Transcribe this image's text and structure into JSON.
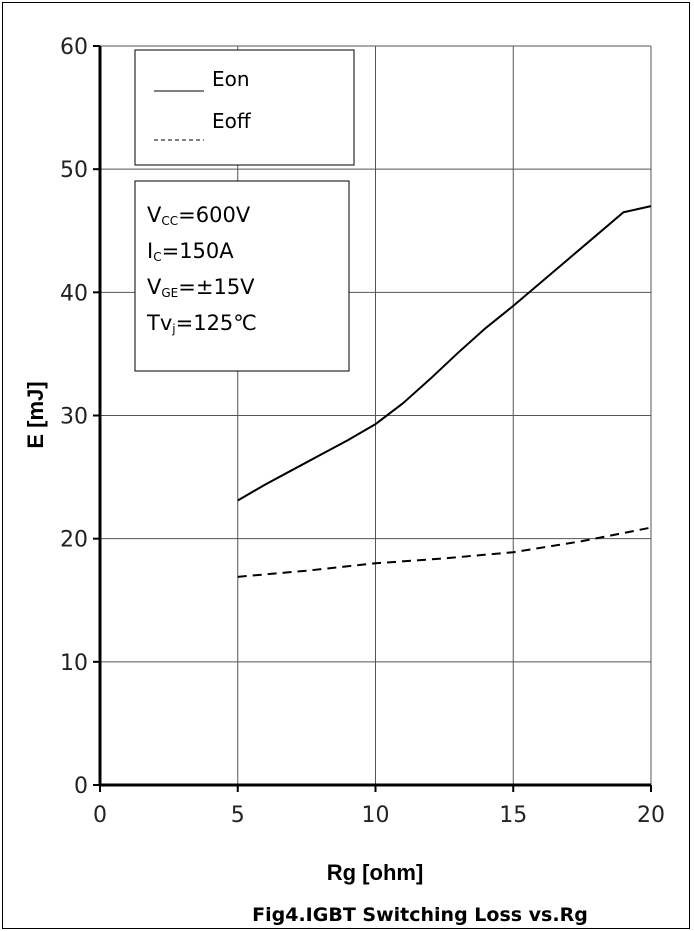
{
  "chart_data": {
    "type": "line",
    "title": "Fig4.IGBT Switching Loss vs.Rg",
    "xlabel": "Rg  [ohm]",
    "ylabel": "E  [mJ]",
    "xlim": [
      0,
      20
    ],
    "ylim": [
      0,
      60
    ],
    "x_ticks": [
      "0",
      "5",
      "10",
      "15",
      "20"
    ],
    "y_ticks": [
      "0",
      "10",
      "20",
      "30",
      "40",
      "50",
      "60"
    ],
    "grid": true,
    "legend_position": "top-left",
    "series": [
      {
        "name": "Eon",
        "style": "solid",
        "color": "#000000",
        "x": [
          5,
          6,
          7,
          8,
          9,
          10,
          11,
          12,
          13,
          14,
          15,
          16,
          17,
          18,
          19,
          20
        ],
        "y": [
          23.1,
          24.4,
          25.6,
          26.8,
          28.0,
          29.3,
          31.0,
          33.0,
          35.1,
          37.1,
          38.9,
          40.8,
          42.7,
          44.6,
          46.5,
          47.0
        ]
      },
      {
        "name": "Eoff",
        "style": "dashed",
        "color": "#000000",
        "x": [
          5,
          7.5,
          10,
          12.5,
          15,
          17.5,
          20
        ],
        "y": [
          16.9,
          17.4,
          18.0,
          18.4,
          18.9,
          19.8,
          20.9
        ]
      }
    ],
    "conditions": {
      "lines": [
        {
          "main": "V",
          "sub": "CC",
          "rest": "=600V"
        },
        {
          "main": "I",
          "sub": "C",
          "rest": "=150A"
        },
        {
          "main": "V",
          "sub": "GE",
          "rest": "=±15V"
        },
        {
          "main": "Tv",
          "sub": "j",
          "rest": "=125℃"
        }
      ]
    }
  }
}
